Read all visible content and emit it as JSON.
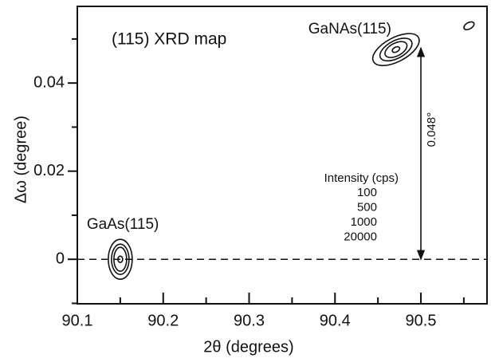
{
  "chart_data": {
    "type": "contour",
    "title": "(115) XRD map",
    "x_label": "2θ (degrees)",
    "y_label": "Δω (degree)",
    "xlim": [
      90.1,
      90.577
    ],
    "ylim": [
      -0.0101,
      0.0574
    ],
    "xticks": [
      90.1,
      90.2,
      90.3,
      90.4,
      90.5
    ],
    "xminorticks": [
      90.15,
      90.25,
      90.35,
      90.45,
      90.55
    ],
    "yticks": [
      0,
      0.02,
      0.04
    ],
    "yminorticks": [
      -0.01,
      0.01,
      0.03,
      0.05
    ],
    "reference_line": 0,
    "peaks": [
      {
        "label": "GaAs(115)",
        "x": 90.15,
        "y": 0
      },
      {
        "label": "GaNAs(115)",
        "x": 90.471,
        "y": 0.0476
      },
      {
        "x": 90.556,
        "y": 0.053
      }
    ],
    "legend_title": "Intensity (cps)",
    "contour_levels": [
      100,
      500,
      1000,
      20000
    ],
    "annotation": {
      "text": "0.048°",
      "x": 90.5,
      "y0": 0,
      "y1": 0.048
    },
    "color": "#111111"
  }
}
